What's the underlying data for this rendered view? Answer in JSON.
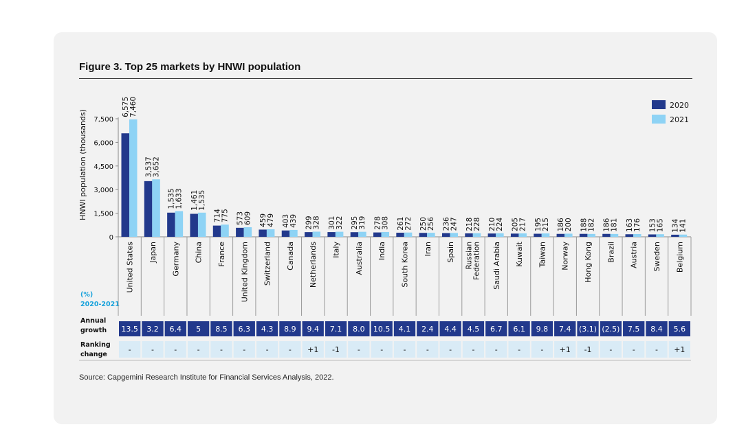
{
  "title": "Figure 3. Top 25 markets by HNWI population",
  "source": "Source: Capgemini Research Institute for Financial Services Analysis, 2022.",
  "colors": {
    "2020": "#22398c",
    "2021": "#8ed3f5",
    "growth_cell": "#22398c",
    "ranking_cell": "#d9ebf6",
    "pct_label": "#1aa3dc"
  },
  "row_labels": {
    "pct": "(%)",
    "period": "2020-2021",
    "growth_1": "Annual",
    "growth_2": "growth",
    "ranking_1": "Ranking",
    "ranking_2": "change"
  },
  "chart_data": {
    "type": "bar",
    "title": "Figure 3. Top 25 markets by HNWI population",
    "ylabel": "HNWI population (thousands)",
    "ylim": [
      0,
      7500
    ],
    "yticks": [
      "0",
      "1,500",
      "3,000",
      "4,500",
      "6,000",
      "7,500"
    ],
    "ytick_values": [
      0,
      1500,
      3000,
      4500,
      6000,
      7500
    ],
    "legend_placement": "top-right",
    "categories": [
      "United States",
      "Japan",
      "Germany",
      "China",
      "France",
      "United Kingdom",
      "Switzerland",
      "Canada",
      "Netherlands",
      "Italy",
      "Australia",
      "India",
      "South Korea",
      "Iran",
      "Spain",
      "Russian Federation",
      "Saudi Arabia",
      "Kuwait",
      "Taiwan",
      "Norway",
      "Hong Kong",
      "Brazil",
      "Austria",
      "Sweden",
      "Belgium"
    ],
    "series": [
      {
        "name": "2020",
        "values": [
          6575,
          3537,
          1535,
          1461,
          714,
          573,
          459,
          403,
          299,
          301,
          295,
          278,
          261,
          250,
          236,
          218,
          210,
          205,
          195,
          186,
          188,
          186,
          163,
          153,
          134
        ],
        "labels": [
          "6,575",
          "3,537",
          "1,535",
          "1,461",
          "714",
          "573",
          "459",
          "403",
          "299",
          "301",
          "295",
          "278",
          "261",
          "250",
          "236",
          "218",
          "210",
          "205",
          "195",
          "186",
          "188",
          "186",
          "163",
          "153",
          "134"
        ]
      },
      {
        "name": "2021",
        "values": [
          7460,
          3652,
          1633,
          1535,
          775,
          609,
          479,
          439,
          328,
          322,
          319,
          308,
          272,
          256,
          247,
          228,
          224,
          217,
          215,
          200,
          182,
          181,
          176,
          165,
          141
        ],
        "labels": [
          "7,460",
          "3,652",
          "1,633",
          "1,535",
          "775",
          "609",
          "479",
          "439",
          "328",
          "322",
          "319",
          "308",
          "272",
          "256",
          "247",
          "228",
          "224",
          "217",
          "215",
          "200",
          "182",
          "181",
          "176",
          "165",
          "141"
        ]
      }
    ],
    "annual_growth": [
      "13.5",
      "3.2",
      "6.4",
      "5",
      "8.5",
      "6.3",
      "4.3",
      "8.9",
      "9.4",
      "7.1",
      "8.0",
      "10.5",
      "4.1",
      "2.4",
      "4.4",
      "4.5",
      "6.7",
      "6.1",
      "9.8",
      "7.4",
      "(3.1)",
      "(2.5)",
      "7.5",
      "8.4",
      "5.6"
    ],
    "ranking_change": [
      "-",
      "-",
      "-",
      "-",
      "-",
      "-",
      "-",
      "-",
      "+1",
      "-1",
      "-",
      "-",
      "-",
      "-",
      "-",
      "-",
      "-",
      "-",
      "-",
      "+1",
      "-1",
      "-",
      "-",
      "-",
      "+1"
    ]
  }
}
